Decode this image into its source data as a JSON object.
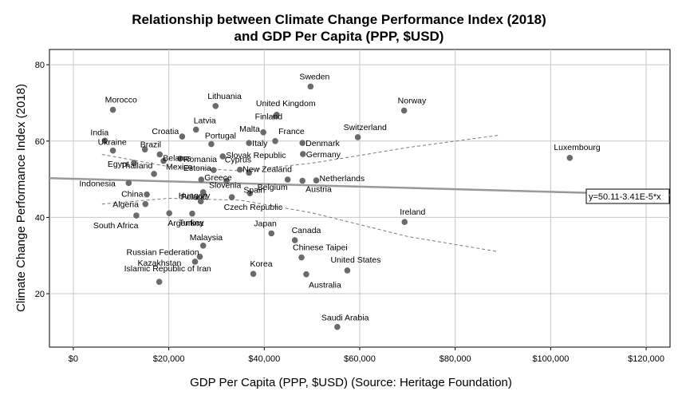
{
  "chart_data": {
    "type": "scatter",
    "title_line1": "Relationship between Climate Change Performance Index (2018)",
    "title_line2": "and GDP Per Capita (PPP, $USD)",
    "xlabel": "GDP Per Capita (PPP, $USD) (Source: Heritage Foundation)",
    "ylabel": "Climate Change Performance Index (2018)",
    "xlim": [
      -5000,
      125000
    ],
    "ylim": [
      6,
      84
    ],
    "x_ticks": [
      0,
      20000,
      40000,
      60000,
      80000,
      100000,
      120000
    ],
    "x_tick_labels": [
      "$0",
      "$20,000",
      "$40,000",
      "$60,000",
      "$80,000",
      "$100,000",
      "$120,000"
    ],
    "y_ticks": [
      20,
      40,
      60,
      80
    ],
    "y_tick_labels": [
      "20",
      "40",
      "60",
      "80"
    ],
    "grid": true,
    "point_color": "#6b6b6b",
    "fit_line": {
      "intercept": 50.11,
      "slope": -3.41e-05,
      "label": "y=50.11-3.41E-5*x",
      "color": "#999999"
    },
    "confidence_band": {
      "upper": [
        [
          6000,
          56.5
        ],
        [
          20000,
          53.3
        ],
        [
          35000,
          52.2
        ],
        [
          50000,
          54.2
        ],
        [
          70000,
          58.3
        ],
        [
          89000,
          61.5
        ]
      ],
      "lower": [
        [
          6000,
          43.5
        ],
        [
          20000,
          45.0
        ],
        [
          35000,
          44.5
        ],
        [
          50000,
          41.2
        ],
        [
          70000,
          35.0
        ],
        [
          89000,
          31.0
        ]
      ]
    },
    "points": [
      {
        "name": "Sweden",
        "x": 49700,
        "y": 74.3
      },
      {
        "name": "Morocco",
        "x": 8300,
        "y": 68.2
      },
      {
        "name": "Lithuania",
        "x": 29800,
        "y": 69.2
      },
      {
        "name": "United Kingdom",
        "x": 42600,
        "y": 66.9
      },
      {
        "name": "Finland",
        "x": 42400,
        "y": 66.5
      },
      {
        "name": "Norway",
        "x": 69300,
        "y": 68.0
      },
      {
        "name": "Latvia",
        "x": 25700,
        "y": 63.0
      },
      {
        "name": "Malta",
        "x": 39800,
        "y": 62.3
      },
      {
        "name": "Croatia",
        "x": 22800,
        "y": 61.2
      },
      {
        "name": "France",
        "x": 42300,
        "y": 60.0
      },
      {
        "name": "Switzerland",
        "x": 59600,
        "y": 61.0
      },
      {
        "name": "India",
        "x": 6600,
        "y": 60.1
      },
      {
        "name": "Portugal",
        "x": 28900,
        "y": 59.2
      },
      {
        "name": "Italy",
        "x": 36800,
        "y": 59.5
      },
      {
        "name": "Denmark",
        "x": 48000,
        "y": 59.5
      },
      {
        "name": "Ukraine",
        "x": 8300,
        "y": 57.5
      },
      {
        "name": "Brazil",
        "x": 15000,
        "y": 57.8
      },
      {
        "name": "Belarus",
        "x": 18100,
        "y": 56.5
      },
      {
        "name": "Slovak Republic",
        "x": 31300,
        "y": 56.0
      },
      {
        "name": "Germany",
        "x": 48100,
        "y": 56.6
      },
      {
        "name": "Romania",
        "x": 22400,
        "y": 55.4
      },
      {
        "name": "Luxembourg",
        "x": 104000,
        "y": 55.6
      },
      {
        "name": "Egypt",
        "x": 12700,
        "y": 54.3
      },
      {
        "name": "Mexico",
        "x": 18900,
        "y": 54.8
      },
      {
        "name": "Estonia",
        "x": 29400,
        "y": 52.4
      },
      {
        "name": "Cyprus",
        "x": 34900,
        "y": 52.5
      },
      {
        "name": "Thailand",
        "x": 16900,
        "y": 51.4
      },
      {
        "name": "New Zealand",
        "x": 36800,
        "y": 51.7
      },
      {
        "name": "Netherlands",
        "x": 50900,
        "y": 49.7
      },
      {
        "name": "Indonesia",
        "x": 11600,
        "y": 49.0
      },
      {
        "name": "Greece",
        "x": 26800,
        "y": 49.9
      },
      {
        "name": "Slovenia",
        "x": 32100,
        "y": 49.6
      },
      {
        "name": "Belgium",
        "x": 44900,
        "y": 49.9
      },
      {
        "name": "Austria",
        "x": 48000,
        "y": 49.6
      },
      {
        "name": "China",
        "x": 15400,
        "y": 46.0
      },
      {
        "name": "Poland",
        "x": 27200,
        "y": 46.6
      },
      {
        "name": "Spain",
        "x": 37000,
        "y": 46.3
      },
      {
        "name": "Algeria",
        "x": 15100,
        "y": 43.5
      },
      {
        "name": "Czech Republic",
        "x": 33200,
        "y": 45.3
      },
      {
        "name": "Hungary",
        "x": 26700,
        "y": 44.2
      },
      {
        "name": "South Africa",
        "x": 13200,
        "y": 40.5
      },
      {
        "name": "Argentina",
        "x": 20100,
        "y": 41.1
      },
      {
        "name": "Turkey",
        "x": 24900,
        "y": 41.0
      },
      {
        "name": "Ireland",
        "x": 69400,
        "y": 38.8
      },
      {
        "name": "Japan",
        "x": 41500,
        "y": 35.8
      },
      {
        "name": "Canada",
        "x": 46400,
        "y": 34.0
      },
      {
        "name": "Malaysia",
        "x": 27200,
        "y": 32.6
      },
      {
        "name": "Russian Federation",
        "x": 26500,
        "y": 29.7
      },
      {
        "name": "Chinese Taipei",
        "x": 47800,
        "y": 29.5
      },
      {
        "name": "Kazakhstan",
        "x": 25500,
        "y": 28.4
      },
      {
        "name": "United States",
        "x": 57400,
        "y": 26.1
      },
      {
        "name": "Korea",
        "x": 37700,
        "y": 25.2
      },
      {
        "name": "Australia",
        "x": 48800,
        "y": 25.1
      },
      {
        "name": "Islamic Republic of Iran",
        "x": 18000,
        "y": 23.1
      },
      {
        "name": "Saudi Arabia",
        "x": 55300,
        "y": 11.3
      }
    ]
  }
}
